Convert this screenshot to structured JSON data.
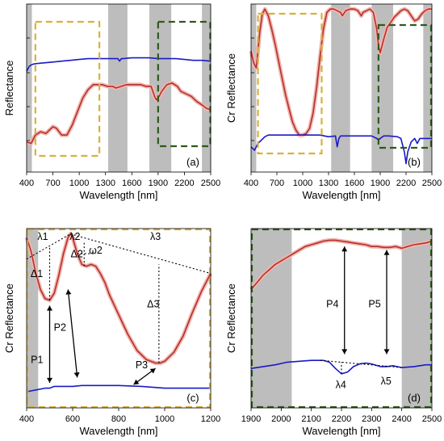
{
  "figure": {
    "panel_letters": [
      "(a)",
      "(b)",
      "(c)",
      "(d)"
    ]
  },
  "colors": {
    "red_curve": "#b5312a",
    "red_shadow": "#f2b5b0",
    "blue_curve": "#1a1ac8",
    "gray_band": "#bdbdbd",
    "yellow_box": "#d9b13c",
    "green_box": "#2e5a1c"
  },
  "chart_data": [
    {
      "type": "line",
      "panel": "(a)",
      "xlabel": "Wavelength [nm]",
      "ylabel": "Reflectance",
      "xlim": [
        400,
        2500
      ],
      "ylim": [
        0,
        1
      ],
      "xticks": [
        "400",
        "700",
        "1000",
        "1300",
        "1600",
        "1900",
        "2200",
        "2500"
      ],
      "grid": false,
      "gray_bands": [
        [
          400,
          460
        ],
        [
          1330,
          1550
        ],
        [
          1800,
          2050
        ],
        [
          2400,
          2500
        ]
      ],
      "boxes": [
        {
          "color": "yellow",
          "x": [
            500,
            1230
          ]
        },
        {
          "color": "green",
          "x": [
            1900,
            2495
          ]
        }
      ],
      "series": [
        {
          "color": "red",
          "x": [
            400,
            450,
            500,
            560,
            620,
            680,
            700,
            740,
            800,
            860,
            920,
            980,
            1040,
            1100,
            1160,
            1200,
            1260,
            1320,
            1380,
            1420,
            1480,
            1540,
            1600,
            1660,
            1700,
            1760,
            1820,
            1860,
            1880,
            1900,
            1940,
            2000,
            2060,
            2120,
            2160,
            2200,
            2240,
            2280,
            2340,
            2400,
            2450,
            2500
          ],
          "values": [
            0.18,
            0.17,
            0.22,
            0.24,
            0.23,
            0.26,
            0.27,
            0.26,
            0.22,
            0.22,
            0.28,
            0.36,
            0.44,
            0.49,
            0.52,
            0.52,
            0.52,
            0.51,
            0.51,
            0.5,
            0.51,
            0.52,
            0.52,
            0.52,
            0.52,
            0.51,
            0.51,
            0.45,
            0.43,
            0.44,
            0.48,
            0.52,
            0.53,
            0.51,
            0.48,
            0.47,
            0.46,
            0.45,
            0.42,
            0.4,
            0.38,
            0.37
          ]
        },
        {
          "color": "blue",
          "x": [
            400,
            430,
            460,
            500,
            600,
            700,
            800,
            900,
            1000,
            1100,
            1200,
            1300,
            1400,
            1440,
            1460,
            1480,
            1500,
            1600,
            1700,
            1800,
            1900,
            2000,
            2100,
            2200,
            2300,
            2400,
            2500
          ],
          "values": [
            0.6,
            0.63,
            0.64,
            0.645,
            0.65,
            0.655,
            0.66,
            0.665,
            0.67,
            0.675,
            0.675,
            0.675,
            0.675,
            0.675,
            0.66,
            0.675,
            0.675,
            0.68,
            0.68,
            0.68,
            0.675,
            0.675,
            0.675,
            0.67,
            0.665,
            0.665,
            0.66
          ]
        }
      ]
    },
    {
      "type": "line",
      "panel": "(b)",
      "xlabel": "Wavelength [nm]",
      "ylabel": "Cr Reflectance",
      "xlim": [
        400,
        2500
      ],
      "ylim": [
        0,
        1
      ],
      "xticks": [
        "400",
        "700",
        "1000",
        "1300",
        "1600",
        "1900",
        "2200",
        "2500"
      ],
      "grid": false,
      "gray_bands": [
        [
          400,
          460
        ],
        [
          1330,
          1550
        ],
        [
          1800,
          2050
        ],
        [
          2400,
          2500
        ]
      ],
      "boxes": [
        {
          "color": "yellow",
          "x": [
            480,
            1220
          ]
        },
        {
          "color": "green",
          "x": [
            1880,
            2490
          ]
        }
      ],
      "series": [
        {
          "color": "red",
          "x": [
            400,
            430,
            460,
            480,
            500,
            530,
            560,
            600,
            640,
            680,
            720,
            760,
            800,
            840,
            880,
            920,
            960,
            1000,
            1040,
            1080,
            1120,
            1160,
            1200,
            1240,
            1280,
            1320,
            1360,
            1400,
            1440,
            1460,
            1500,
            1550,
            1600,
            1640,
            1680,
            1700,
            1740,
            1780,
            1820,
            1860,
            1880,
            1900,
            1940,
            1980,
            2020,
            2060,
            2100,
            2140,
            2180,
            2220,
            2260,
            2300,
            2340,
            2380,
            2420,
            2460,
            2500
          ],
          "values": [
            0.72,
            0.65,
            0.62,
            0.72,
            0.83,
            0.94,
            0.97,
            0.93,
            0.85,
            0.76,
            0.66,
            0.56,
            0.46,
            0.38,
            0.3,
            0.25,
            0.22,
            0.22,
            0.23,
            0.26,
            0.35,
            0.5,
            0.68,
            0.85,
            0.95,
            0.97,
            0.97,
            0.96,
            0.95,
            0.93,
            0.96,
            0.97,
            0.97,
            0.96,
            0.93,
            0.95,
            0.96,
            0.97,
            0.95,
            0.85,
            0.75,
            0.71,
            0.79,
            0.86,
            0.89,
            0.92,
            0.94,
            0.96,
            0.97,
            0.96,
            0.93,
            0.9,
            0.91,
            0.94,
            0.96,
            0.97,
            0.97
          ]
        },
        {
          "color": "blue",
          "x": [
            400,
            440,
            480,
            520,
            560,
            600,
            700,
            800,
            900,
            1000,
            1100,
            1200,
            1300,
            1380,
            1400,
            1420,
            1440,
            1500,
            1600,
            1700,
            1800,
            1860,
            1880,
            1900,
            1940,
            2000,
            2100,
            2140,
            2180,
            2200,
            2220,
            2260,
            2300,
            2330,
            2360,
            2400,
            2450,
            2500
          ],
          "values": [
            0.15,
            0.13,
            0.17,
            0.19,
            0.21,
            0.22,
            0.22,
            0.22,
            0.22,
            0.22,
            0.22,
            0.22,
            0.21,
            0.215,
            0.15,
            0.2,
            0.215,
            0.215,
            0.215,
            0.215,
            0.215,
            0.2,
            0.19,
            0.2,
            0.215,
            0.215,
            0.21,
            0.2,
            0.12,
            0.05,
            0.12,
            0.18,
            0.2,
            0.17,
            0.2,
            0.2,
            0.2,
            0.2
          ]
        }
      ]
    },
    {
      "type": "line",
      "panel": "(c)",
      "xlabel": "Wavelength [nm]",
      "ylabel": "Cr Reflectance",
      "xlim": [
        400,
        1200
      ],
      "ylim": [
        0,
        1
      ],
      "xticks": [
        "400",
        "600",
        "800",
        "1000",
        "1200"
      ],
      "grid": false,
      "gray_bands": [
        [
          400,
          450
        ]
      ],
      "boxes": [
        {
          "color": "yellow",
          "x": [
            400,
            1200
          ]
        }
      ],
      "annotations": [
        "λ1",
        "λ2",
        "λ3",
        "Δ1",
        "Δ2",
        "Δ3",
        "ω2",
        "P1",
        "P2",
        "P3"
      ],
      "series": [
        {
          "color": "red",
          "x": [
            400,
            420,
            440,
            460,
            480,
            500,
            520,
            540,
            560,
            580,
            590,
            600,
            620,
            640,
            660,
            680,
            700,
            720,
            740,
            760,
            800,
            840,
            880,
            920,
            960,
            980,
            1000,
            1040,
            1080,
            1120,
            1160,
            1200
          ],
          "values": [
            0.95,
            0.87,
            0.75,
            0.66,
            0.61,
            0.6,
            0.64,
            0.74,
            0.86,
            0.95,
            0.97,
            0.95,
            0.86,
            0.8,
            0.79,
            0.8,
            0.79,
            0.75,
            0.7,
            0.63,
            0.52,
            0.41,
            0.32,
            0.27,
            0.25,
            0.25,
            0.26,
            0.31,
            0.4,
            0.53,
            0.65,
            0.75
          ]
        },
        {
          "color": "blue",
          "x": [
            400,
            440,
            480,
            500,
            520,
            560,
            600,
            640,
            700,
            800,
            900,
            1000,
            1100,
            1200
          ],
          "values": [
            0.09,
            0.1,
            0.11,
            0.11,
            0.12,
            0.12,
            0.12,
            0.125,
            0.125,
            0.125,
            0.12,
            0.11,
            0.11,
            0.11
          ]
        }
      ]
    },
    {
      "type": "line",
      "panel": "(d)",
      "xlabel": "Wavelength [nm]",
      "ylabel": "Cr Reflectance",
      "xlim": [
        1900,
        2500
      ],
      "ylim": [
        0,
        1
      ],
      "xticks": [
        "1900",
        "2000",
        "2100",
        "2200",
        "2300",
        "2400",
        "2500"
      ],
      "grid": false,
      "gray_bands": [
        [
          1900,
          2035
        ],
        [
          2400,
          2500
        ]
      ],
      "boxes": [
        {
          "color": "green",
          "x": [
            1900,
            2500
          ]
        }
      ],
      "annotations": [
        "P4",
        "P5",
        "λ4",
        "λ5"
      ],
      "series": [
        {
          "color": "red",
          "x": [
            1900,
            1920,
            1940,
            1960,
            1980,
            2000,
            2020,
            2040,
            2060,
            2080,
            2100,
            2120,
            2140,
            2160,
            2180,
            2200,
            2220,
            2240,
            2260,
            2280,
            2300,
            2320,
            2340,
            2360,
            2380,
            2400,
            2420,
            2440,
            2460,
            2480,
            2500
          ],
          "values": [
            0.66,
            0.7,
            0.74,
            0.77,
            0.8,
            0.82,
            0.84,
            0.86,
            0.88,
            0.9,
            0.91,
            0.92,
            0.93,
            0.935,
            0.935,
            0.93,
            0.925,
            0.92,
            0.915,
            0.91,
            0.9,
            0.9,
            0.895,
            0.895,
            0.9,
            0.89,
            0.9,
            0.91,
            0.915,
            0.92,
            0.93
          ]
        },
        {
          "color": "blue",
          "x": [
            1900,
            1940,
            1980,
            2020,
            2060,
            2100,
            2140,
            2160,
            2180,
            2200,
            2220,
            2240,
            2260,
            2280,
            2300,
            2330,
            2350,
            2370,
            2400,
            2440,
            2480,
            2500
          ],
          "values": [
            0.22,
            0.23,
            0.24,
            0.255,
            0.26,
            0.265,
            0.265,
            0.255,
            0.22,
            0.19,
            0.2,
            0.23,
            0.245,
            0.25,
            0.245,
            0.23,
            0.23,
            0.235,
            0.225,
            0.23,
            0.24,
            0.24
          ]
        }
      ]
    }
  ]
}
